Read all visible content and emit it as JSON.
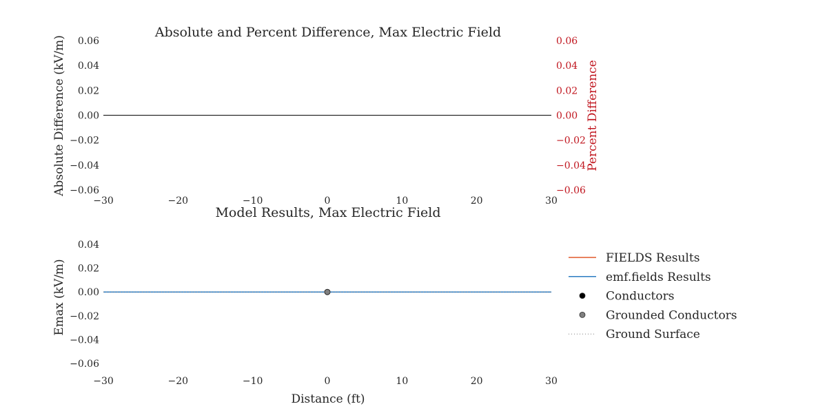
{
  "chart_data": [
    {
      "type": "line",
      "title": "Absolute and Percent Difference, Max Electric Field",
      "ylabel_left": "Absolute Difference (kV/m)",
      "ylabel_right": "Percent Difference",
      "xlabel": "",
      "xlim": [
        -30,
        30
      ],
      "ylim_left": [
        -0.06,
        0.06
      ],
      "ylim_right": [
        -0.06,
        0.06
      ],
      "x_ticks": [
        "−30",
        "−20",
        "−10",
        "0",
        "10",
        "20",
        "30"
      ],
      "y_ticks_left": [
        "0.06",
        "0.04",
        "0.02",
        "0.00",
        "−0.02",
        "−0.04",
        "−0.06"
      ],
      "y_ticks_right": [
        "0.06",
        "0.04",
        "0.02",
        "0.00",
        "−0.02",
        "−0.04",
        "−0.06"
      ],
      "grid": false,
      "series": [
        {
          "axis": "left",
          "color": "#262626",
          "x": [
            -30,
            30
          ],
          "y": [
            0.0,
            0.0
          ]
        }
      ],
      "colors": {
        "right_axis": "#c0151e"
      }
    },
    {
      "type": "line",
      "title": "Model Results, Max Electric Field",
      "ylabel": "Emax (kV/m)",
      "xlabel": "Distance (ft)",
      "xlim": [
        -30,
        30
      ],
      "ylim": [
        -0.06,
        0.04
      ],
      "x_ticks": [
        "−30",
        "−20",
        "−10",
        "0",
        "10",
        "20",
        "30"
      ],
      "y_ticks": [
        "0.04",
        "0.02",
        "0.00",
        "−0.02",
        "−0.04",
        "−0.06"
      ],
      "grid": false,
      "series": [
        {
          "name": "FIELDS Results",
          "color": "#e0582a",
          "style": "line",
          "x": [
            -30,
            30
          ],
          "y": [
            0.0,
            0.0
          ]
        },
        {
          "name": "emf.fields Results",
          "color": "#2a7bc1",
          "style": "line",
          "x": [
            -30,
            30
          ],
          "y": [
            0.0,
            0.0
          ]
        },
        {
          "name": "Conductors",
          "color": "#000000",
          "style": "marker",
          "x": [],
          "y": []
        },
        {
          "name": "Grounded Conductors",
          "color": "#808080",
          "style": "marker",
          "x": [
            0
          ],
          "y": [
            0.0
          ]
        },
        {
          "name": "Ground Surface",
          "color": "#808080",
          "style": "dotted",
          "x": [
            -30,
            30
          ],
          "y": [
            0.0,
            0.0
          ]
        }
      ],
      "legend": {
        "placement": "right",
        "entries": [
          "FIELDS Results",
          "emf.fields Results",
          "Conductors",
          "Grounded Conductors",
          "Ground Surface"
        ]
      }
    }
  ]
}
